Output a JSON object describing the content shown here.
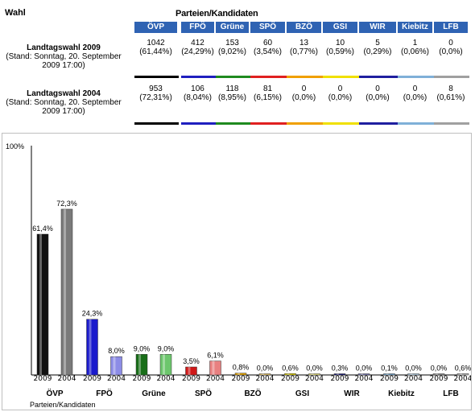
{
  "header": {
    "wahl_label": "Wahl",
    "parties_title": "Parteien/Kandidaten"
  },
  "parties": [
    {
      "name": "ÖVP",
      "color": "#000000"
    },
    {
      "name": "FPÖ",
      "color": "#1f1fbf"
    },
    {
      "name": "Grüne",
      "color": "#1f8a1f"
    },
    {
      "name": "SPÖ",
      "color": "#e02020"
    },
    {
      "name": "BZÖ",
      "color": "#f0a000"
    },
    {
      "name": "GSI",
      "color": "#f0e000"
    },
    {
      "name": "WIR",
      "color": "#1f1f9f"
    },
    {
      "name": "Kiebitz",
      "color": "#7fb0d8"
    },
    {
      "name": "LFB",
      "color": "#a0a0a0"
    }
  ],
  "elections": [
    {
      "title": "Landtagswahl 2009",
      "subtitle_1": "(Stand: Sonntag, 20. September",
      "subtitle_2": "2009 17:00)",
      "votes": [
        "1042",
        "412",
        "153",
        "60",
        "13",
        "10",
        "5",
        "1",
        "0"
      ],
      "pct": [
        "(61,44%)",
        "(24,29%)",
        "(9,02%)",
        "(3,54%)",
        "(0,77%)",
        "(0,59%)",
        "(0,29%)",
        "(0,06%)",
        "(0,0%)"
      ]
    },
    {
      "title": "Landtagswahl 2004",
      "subtitle_1": "(Stand: Sonntag, 20. September",
      "subtitle_2": "2009 17:00)",
      "votes": [
        "953",
        "106",
        "118",
        "81",
        "0",
        "0",
        "0",
        "0",
        "8"
      ],
      "pct": [
        "(72,31%)",
        "(8,04%)",
        "(8,95%)",
        "(6,15%)",
        "(0,0%)",
        "(0,0%)",
        "(0,0%)",
        "(0,0%)",
        "(0,61%)"
      ]
    }
  ],
  "chart_data": {
    "type": "bar",
    "ymax_label": "100%",
    "xlabel": "Parteien/Kandidaten",
    "ylim": [
      0,
      100
    ],
    "categories": [
      "ÖVP",
      "FPÖ",
      "Grüne",
      "SPÖ",
      "BZÖ",
      "GSI",
      "WIR",
      "Kiebitz",
      "LFB"
    ],
    "series": [
      {
        "name": "2009",
        "values": [
          61.4,
          24.3,
          9.0,
          3.5,
          0.8,
          0.6,
          0.3,
          0.1,
          0.0
        ],
        "labels": [
          "61,4%",
          "24,3%",
          "9,0%",
          "3,5%",
          "0,8%",
          "0,6%",
          "0,3%",
          "0,1%",
          "0,0%"
        ]
      },
      {
        "name": "2004",
        "values": [
          72.3,
          8.0,
          9.0,
          6.1,
          0.0,
          0.0,
          0.0,
          0.0,
          0.6
        ],
        "labels": [
          "72,3%",
          "8,0%",
          "9,0%",
          "6,1%",
          "0,0%",
          "0,0%",
          "0,0%",
          "0,0%",
          "0,6%"
        ]
      }
    ],
    "colors_2009": [
      "#111111",
      "#1a1acc",
      "#186e18",
      "#d01818",
      "#e0a000",
      "#e6d600",
      "#14147a",
      "#6fa6d2",
      "#8c8c8c"
    ],
    "colors_2004": [
      "#7a7a7a",
      "#8c8ce6",
      "#6cc66c",
      "#e88080",
      "#f0c860",
      "#f2ea7a",
      "#7a7ab8",
      "#b8d4ea",
      "#c4c4c4"
    ]
  }
}
